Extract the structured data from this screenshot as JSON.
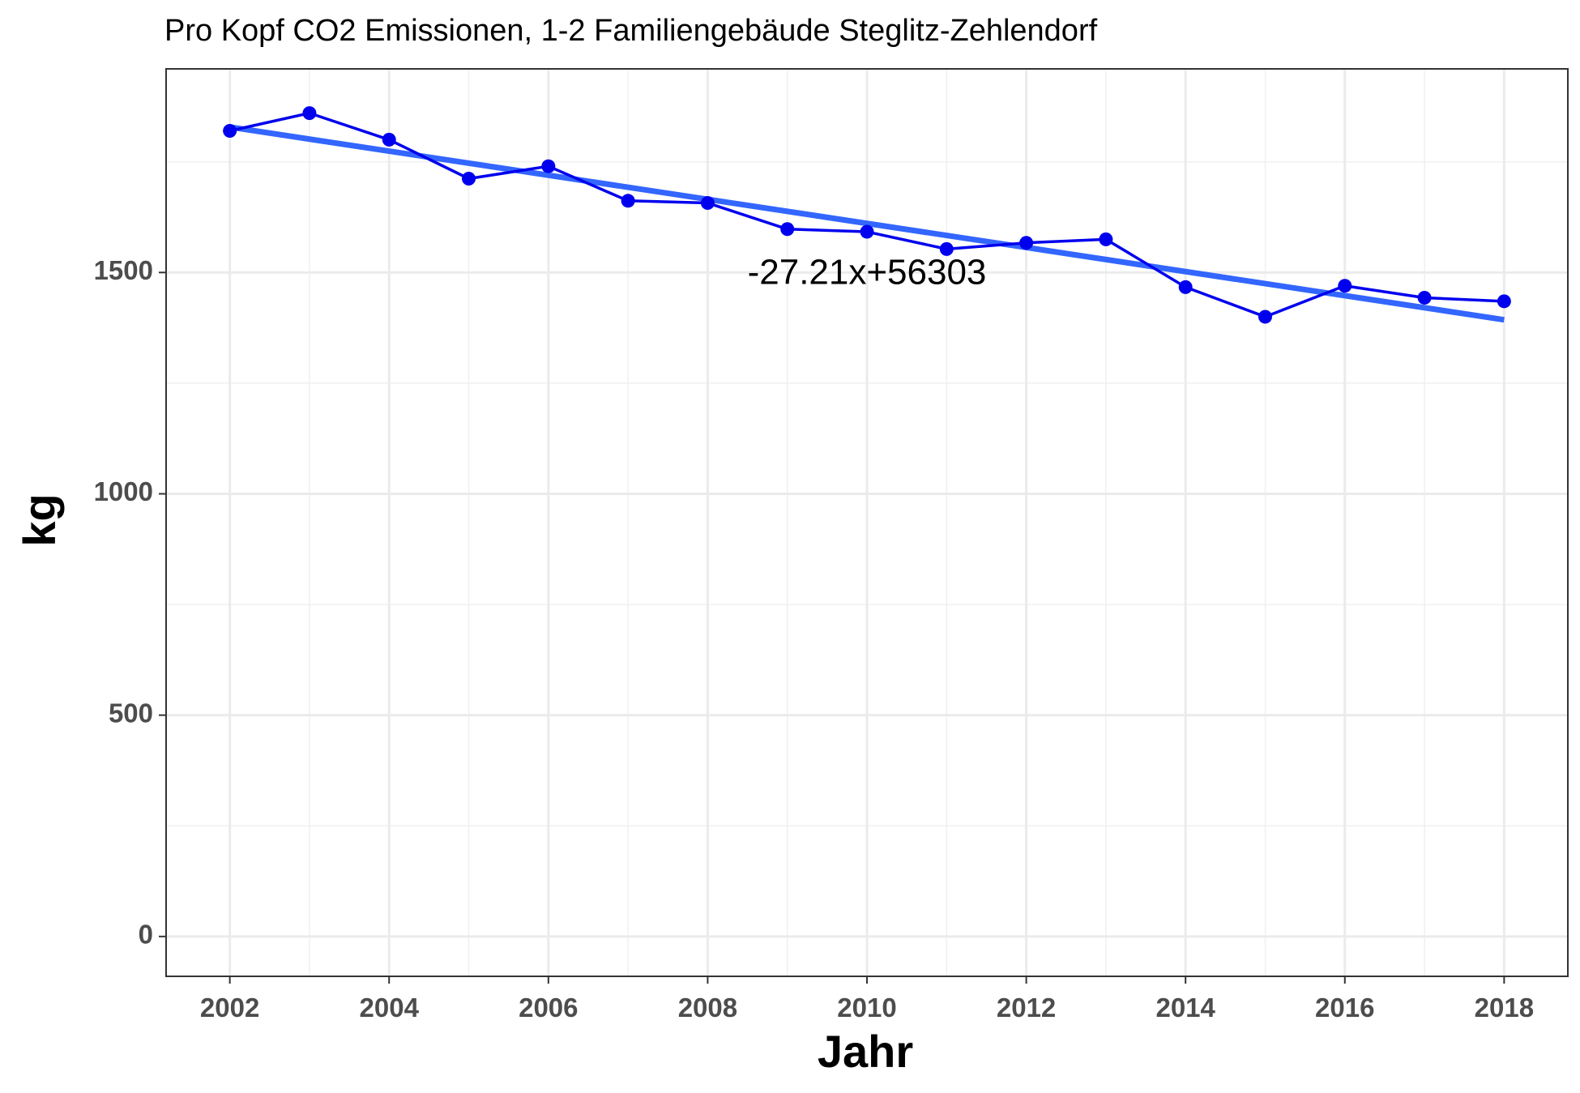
{
  "chart_data": {
    "type": "line",
    "title": "Pro Kopf CO2 Emissionen, 1-2 Familiengebäude Steglitz-Zehlendorf",
    "xlabel": "Jahr",
    "ylabel": "kg",
    "xlim": [
      2001.2,
      2018.8
    ],
    "ylim": [
      -90,
      1960
    ],
    "x_ticks": [
      2002,
      2004,
      2006,
      2008,
      2010,
      2012,
      2014,
      2016,
      2018
    ],
    "y_ticks": [
      0,
      500,
      1000,
      1500
    ],
    "grid": true,
    "series": [
      {
        "color": "#0000ee",
        "x": [
          2002,
          2003,
          2004,
          2005,
          2006,
          2007,
          2008,
          2009,
          2010,
          2011,
          2012,
          2013,
          2014,
          2015,
          2016,
          2017,
          2018
        ],
        "values": [
          1820,
          1860,
          1800,
          1712,
          1740,
          1662,
          1657,
          1598,
          1592,
          1553,
          1567,
          1575,
          1467,
          1400,
          1470,
          1443,
          1435
        ]
      }
    ],
    "trendline": {
      "color": "#3366ff",
      "slope": -27.21,
      "intercept": 56303,
      "x_range": [
        2002,
        2018
      ]
    },
    "annotations": [
      {
        "text": "-27.21x+56303",
        "x": 2010,
        "y": 1495
      }
    ]
  }
}
